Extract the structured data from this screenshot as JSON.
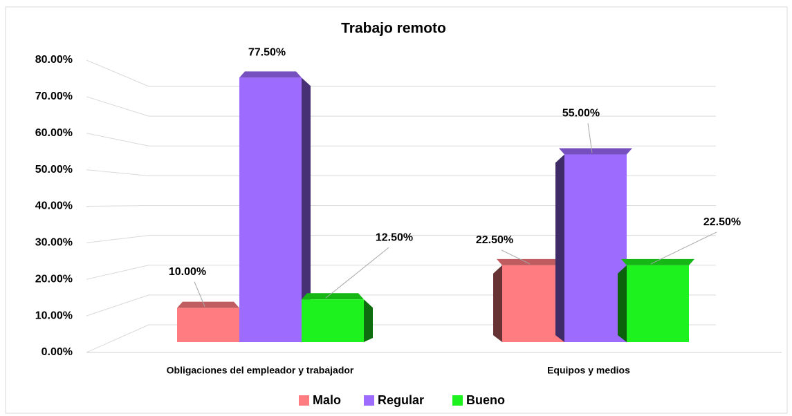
{
  "chart_data": {
    "type": "bar3d",
    "title": "Trabajo remoto",
    "categories": [
      "Obligaciones del empleador y trabajador",
      "Equipos y medios"
    ],
    "series": [
      {
        "name": "Malo",
        "color": "#ff7c80",
        "values": [
          10,
          22.5
        ],
        "value_labels": [
          "10.00%",
          "22.50%"
        ]
      },
      {
        "name": "Regular",
        "color": "#9e6bff",
        "values": [
          77.5,
          55
        ],
        "value_labels": [
          "77.50%",
          "55.00%"
        ]
      },
      {
        "name": "Bueno",
        "color": "#1ef21e",
        "values": [
          12.5,
          22.5
        ],
        "value_labels": [
          "12.50%",
          "22.50%"
        ]
      }
    ],
    "ylim": [
      0,
      80
    ],
    "yticks": [
      {
        "value": 0,
        "label": "0.00%"
      },
      {
        "value": 10,
        "label": "10.00%"
      },
      {
        "value": 20,
        "label": "20.00%"
      },
      {
        "value": 30,
        "label": "30.00%"
      },
      {
        "value": 40,
        "label": "40.00%"
      },
      {
        "value": 50,
        "label": "50.00%"
      },
      {
        "value": 60,
        "label": "60.00%"
      },
      {
        "value": 70,
        "label": "70.00%"
      },
      {
        "value": 80,
        "label": "80.00%"
      }
    ],
    "grid": true,
    "legend": "bottom"
  }
}
